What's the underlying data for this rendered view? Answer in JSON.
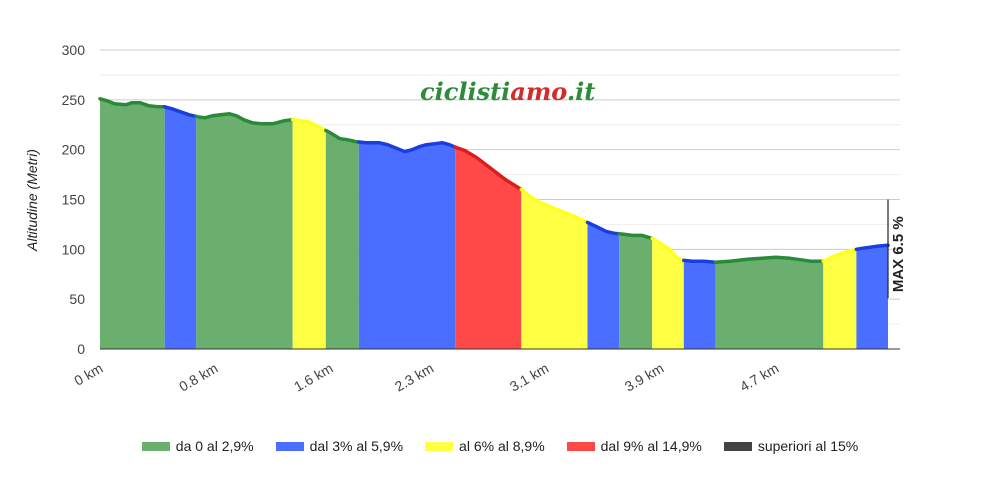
{
  "chart_data": {
    "type": "area",
    "ylabel": "Altitudine (Metri)",
    "ylim": [
      0,
      300
    ],
    "yticks": [
      0,
      50,
      100,
      150,
      200,
      250,
      300
    ],
    "xlim_km": [
      0,
      5.48
    ],
    "xtick_labels": [
      {
        "km": 0,
        "label": "0 km"
      },
      {
        "km": 0.8,
        "label": "0.8 km"
      },
      {
        "km": 1.6,
        "label": "1.6 km"
      },
      {
        "km": 2.3,
        "label": "2.3 km"
      },
      {
        "km": 3.1,
        "label": "3.1 km"
      },
      {
        "km": 3.9,
        "label": "3.9 km"
      },
      {
        "km": 4.7,
        "label": "4.7 km"
      }
    ],
    "grid": true,
    "legend_placement": "bottom",
    "profile": [
      {
        "x": 0,
        "y": 251
      },
      {
        "x": 0.05,
        "y": 249
      },
      {
        "x": 0.1,
        "y": 246
      },
      {
        "x": 0.18,
        "y": 245
      },
      {
        "x": 0.22,
        "y": 247
      },
      {
        "x": 0.28,
        "y": 247
      },
      {
        "x": 0.34,
        "y": 244
      },
      {
        "x": 0.4,
        "y": 243
      },
      {
        "x": 0.45,
        "y": 243
      },
      {
        "x": 0.5,
        "y": 241
      },
      {
        "x": 0.56,
        "y": 238
      },
      {
        "x": 0.62,
        "y": 235
      },
      {
        "x": 0.68,
        "y": 233
      },
      {
        "x": 0.73,
        "y": 232
      },
      {
        "x": 0.78,
        "y": 234
      },
      {
        "x": 0.84,
        "y": 235
      },
      {
        "x": 0.9,
        "y": 236
      },
      {
        "x": 0.95,
        "y": 234
      },
      {
        "x": 1.0,
        "y": 230
      },
      {
        "x": 1.06,
        "y": 227
      },
      {
        "x": 1.12,
        "y": 226
      },
      {
        "x": 1.2,
        "y": 226
      },
      {
        "x": 1.28,
        "y": 229
      },
      {
        "x": 1.34,
        "y": 230
      },
      {
        "x": 1.4,
        "y": 229
      },
      {
        "x": 1.45,
        "y": 228
      },
      {
        "x": 1.52,
        "y": 223
      },
      {
        "x": 1.6,
        "y": 217
      },
      {
        "x": 1.67,
        "y": 211
      },
      {
        "x": 1.72,
        "y": 210
      },
      {
        "x": 1.78,
        "y": 208
      },
      {
        "x": 1.85,
        "y": 207
      },
      {
        "x": 1.9,
        "y": 207
      },
      {
        "x": 1.94,
        "y": 207
      },
      {
        "x": 2.0,
        "y": 205
      },
      {
        "x": 2.07,
        "y": 201
      },
      {
        "x": 2.12,
        "y": 198
      },
      {
        "x": 2.17,
        "y": 200
      },
      {
        "x": 2.22,
        "y": 203
      },
      {
        "x": 2.27,
        "y": 205
      },
      {
        "x": 2.33,
        "y": 206
      },
      {
        "x": 2.38,
        "y": 207
      },
      {
        "x": 2.43,
        "y": 205
      },
      {
        "x": 2.48,
        "y": 202
      },
      {
        "x": 2.54,
        "y": 199
      },
      {
        "x": 2.62,
        "y": 192
      },
      {
        "x": 2.72,
        "y": 181
      },
      {
        "x": 2.82,
        "y": 170
      },
      {
        "x": 2.93,
        "y": 160
      },
      {
        "x": 3.0,
        "y": 152
      },
      {
        "x": 3.06,
        "y": 147
      },
      {
        "x": 3.18,
        "y": 140
      },
      {
        "x": 3.3,
        "y": 133
      },
      {
        "x": 3.39,
        "y": 127
      },
      {
        "x": 3.45,
        "y": 123
      },
      {
        "x": 3.52,
        "y": 118
      },
      {
        "x": 3.58,
        "y": 116
      },
      {
        "x": 3.65,
        "y": 115
      },
      {
        "x": 3.7,
        "y": 114
      },
      {
        "x": 3.77,
        "y": 114
      },
      {
        "x": 3.84,
        "y": 111
      },
      {
        "x": 3.9,
        "y": 106
      },
      {
        "x": 3.96,
        "y": 100
      },
      {
        "x": 4.01,
        "y": 92
      },
      {
        "x": 4.05,
        "y": 89
      },
      {
        "x": 4.12,
        "y": 88
      },
      {
        "x": 4.2,
        "y": 88
      },
      {
        "x": 4.28,
        "y": 87
      },
      {
        "x": 4.38,
        "y": 88
      },
      {
        "x": 4.5,
        "y": 90
      },
      {
        "x": 4.6,
        "y": 91
      },
      {
        "x": 4.7,
        "y": 92
      },
      {
        "x": 4.8,
        "y": 91
      },
      {
        "x": 4.9,
        "y": 89
      },
      {
        "x": 4.95,
        "y": 88
      },
      {
        "x": 5.03,
        "y": 88
      },
      {
        "x": 5.1,
        "y": 93
      },
      {
        "x": 5.18,
        "y": 97
      },
      {
        "x": 5.26,
        "y": 100
      },
      {
        "x": 5.3,
        "y": 101
      },
      {
        "x": 5.4,
        "y": 103
      },
      {
        "x": 5.48,
        "y": 104
      }
    ],
    "segments": [
      {
        "x0": 0,
        "x1": 0.45,
        "class": 0
      },
      {
        "x0": 0.45,
        "x1": 0.67,
        "class": 1
      },
      {
        "x0": 0.67,
        "x1": 1.34,
        "class": 0
      },
      {
        "x0": 1.34,
        "x1": 1.57,
        "class": 2
      },
      {
        "x0": 1.57,
        "x1": 1.8,
        "class": 0
      },
      {
        "x0": 1.8,
        "x1": 2.47,
        "class": 1
      },
      {
        "x0": 2.47,
        "x1": 2.93,
        "class": 3
      },
      {
        "x0": 2.93,
        "x1": 3.39,
        "class": 2
      },
      {
        "x0": 3.39,
        "x1": 3.61,
        "class": 1
      },
      {
        "x0": 3.61,
        "x1": 3.84,
        "class": 0
      },
      {
        "x0": 3.84,
        "x1": 4.06,
        "class": 2
      },
      {
        "x0": 4.06,
        "x1": 4.28,
        "class": 1
      },
      {
        "x0": 4.28,
        "x1": 5.03,
        "class": 0
      },
      {
        "x0": 5.03,
        "x1": 5.26,
        "class": 2
      },
      {
        "x0": 5.26,
        "x1": 5.48,
        "class": 1
      }
    ],
    "series": [
      {
        "name": "da 0 al 2,9%",
        "color": "#6aaf6e",
        "line_color": "#2a8a3a"
      },
      {
        "name": "dal 3% al 5,9%",
        "color": "#4a6eff",
        "line_color": "#1a3de0"
      },
      {
        "name": "al 6% al 8,9%",
        "color": "#ffff44",
        "line_color": "#ffff22"
      },
      {
        "name": "dal 9% al 14,9%",
        "color": "#ff4848",
        "line_color": "#dd1c1c"
      },
      {
        "name": "superiori al 15%",
        "color": "#444444",
        "line_color": "#222222"
      }
    ],
    "annotation": "MAX 6.5 %"
  },
  "logo": {
    "part1": "ciclisti",
    "part2": "amo",
    "part3": ".it",
    "color_main": "#2e8b3a",
    "color_accent": "#d42a2a"
  }
}
